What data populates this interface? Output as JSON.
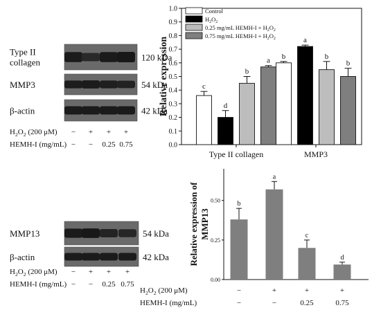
{
  "blot_top": {
    "rows": [
      {
        "label_lines": [
          "Type II",
          "collagen"
        ],
        "size": "120 kDa",
        "band_intensity": [
          0.62,
          0.42,
          0.62,
          0.66
        ]
      },
      {
        "label_lines": [
          "MMP3"
        ],
        "size": "54 kDa",
        "band_intensity": [
          0.58,
          0.62,
          0.56,
          0.52
        ]
      },
      {
        "label_lines": [
          "β-actin"
        ],
        "size": "42 kDa",
        "band_intensity": [
          0.62,
          0.62,
          0.62,
          0.62
        ]
      }
    ],
    "treatment": {
      "h2o2_label_parts": [
        "H",
        "2",
        "O",
        "2",
        " (200 μM)"
      ],
      "h2o2_values": [
        "−",
        "+",
        "+",
        "+"
      ],
      "hemh_label": "HEMH-I (mg/mL)",
      "hemh_values": [
        "−",
        "−",
        "0.25",
        "0.75"
      ]
    }
  },
  "blot_bottom": {
    "rows": [
      {
        "label_lines": [
          "MMP13"
        ],
        "size": "54 kDa",
        "band_intensity": [
          0.62,
          0.66,
          0.5,
          0.46
        ]
      },
      {
        "label_lines": [
          "β-actin"
        ],
        "size": "42 kDa",
        "band_intensity": [
          0.62,
          0.62,
          0.62,
          0.62
        ]
      }
    ],
    "treatment": {
      "h2o2_label_parts": [
        "H",
        "2",
        "O",
        "2",
        " (200 μM)"
      ],
      "h2o2_values": [
        "−",
        "+",
        "+",
        "+"
      ],
      "hemh_label": "HEMH-I (mg/mL)",
      "hemh_values": [
        "−",
        "−",
        "0.25",
        "0.75"
      ]
    }
  },
  "chart_data": [
    {
      "type": "bar",
      "ylabel": "Relative expression",
      "ylim": [
        0,
        1.0
      ],
      "yticks": [
        0.0,
        0.1,
        0.2,
        0.3,
        0.4,
        0.5,
        0.6,
        0.7,
        0.8,
        0.9,
        1.0
      ],
      "tick_labels": [
        "0.0",
        "0.1",
        "0.2",
        "0.3",
        "0.4",
        "0.5",
        "0.6",
        "0.7",
        "0.8",
        "0.9",
        "1.0"
      ],
      "categories": [
        "Type II collagen",
        "MMP3"
      ],
      "legend_placement": "top-left",
      "series": [
        {
          "name": "Control",
          "legend_parts": [
            "Control"
          ],
          "color": "#ffffff",
          "values": [
            0.36,
            0.6
          ],
          "errors": [
            0.03,
            0.01
          ],
          "letters": [
            "c",
            "b"
          ]
        },
        {
          "name": "H2O2",
          "legend_parts": [
            "H",
            "2",
            "O",
            "2"
          ],
          "color": "#000000",
          "values": [
            0.2,
            0.72
          ],
          "errors": [
            0.05,
            0.01
          ],
          "letters": [
            "d",
            "a"
          ]
        },
        {
          "name": "0.25 mg/mL HEMH-I + H2O2",
          "legend_parts": [
            "0.25 mg/mL HEMH-I + H",
            "2",
            "O",
            "2"
          ],
          "color": "#bdbdbd",
          "values": [
            0.45,
            0.55
          ],
          "errors": [
            0.05,
            0.06
          ],
          "letters": [
            "b",
            "b"
          ]
        },
        {
          "name": "0.75 mg/mL HEMH-I + H2O2",
          "legend_parts": [
            "0.75 mg/mL HEMH-I + H",
            "2",
            "O",
            "2"
          ],
          "color": "#7f7f7f",
          "values": [
            0.57,
            0.5
          ],
          "errors": [
            0.01,
            0.06
          ],
          "letters": [
            "a",
            "b"
          ]
        }
      ]
    },
    {
      "type": "bar",
      "ylabel_lines": [
        "Relative expression of",
        "MMP13"
      ],
      "ylim": [
        0,
        0.7
      ],
      "yticks": [
        0.0,
        0.25,
        0.5
      ],
      "tick_labels": [
        "0.00",
        "0.25",
        "0.50"
      ],
      "categories": [
        "1",
        "2",
        "3",
        "4"
      ],
      "bar_color": "#7f7f7f",
      "values": [
        0.38,
        0.57,
        0.2,
        0.095
      ],
      "errors": [
        0.07,
        0.05,
        0.05,
        0.015
      ],
      "letters": [
        "b",
        "a",
        "c",
        "d"
      ],
      "treatment": {
        "h2o2_label_parts": [
          "H",
          "2",
          "O",
          "2",
          " (200 μM)"
        ],
        "h2o2_values": [
          "−",
          "+",
          "+",
          "+"
        ],
        "hemh_label": "HEMH-I (mg/mL)",
        "hemh_values": [
          "−",
          "−",
          "0.25",
          "0.75"
        ]
      }
    }
  ]
}
